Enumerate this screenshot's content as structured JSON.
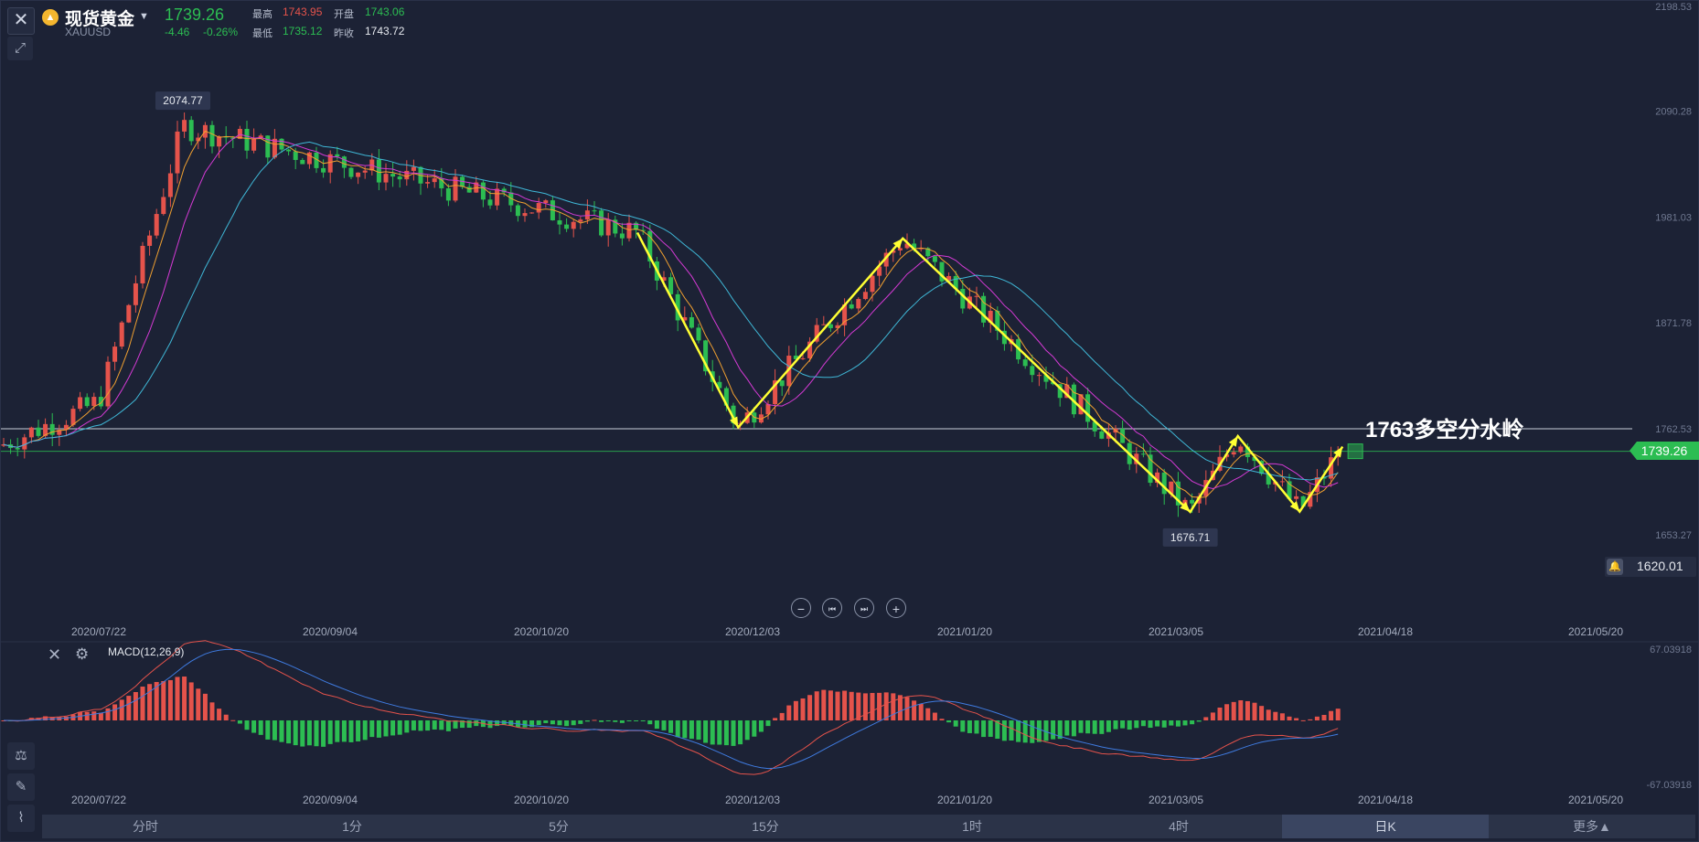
{
  "header": {
    "symbol_name": "现货黄金",
    "symbol_code": "XAUUSD",
    "last_price": "1739.26",
    "change_abs": "-4.46",
    "change_pct": "-0.26%",
    "high_label": "最高",
    "high_value": "1743.95",
    "open_label": "开盘",
    "open_value": "1743.06",
    "low_label": "最低",
    "low_value": "1735.12",
    "prev_close_label": "昨收",
    "prev_close_value": "1743.72"
  },
  "price_axis": {
    "ticks": [
      "2198.53",
      "2090.28",
      "1981.03",
      "1871.78",
      "1762.53",
      "1653.27"
    ],
    "current_price_tag": "1739.26",
    "alert_price": "1620.01"
  },
  "annotations": {
    "high_marker": "2074.77",
    "low_marker": "1676.71",
    "level_text": "1763多空分水岭"
  },
  "date_axis": [
    "2020/07/22",
    "2020/09/04",
    "2020/10/20",
    "2020/12/03",
    "2021/01/20",
    "2021/03/05",
    "2021/04/18",
    "2021/05/20"
  ],
  "macd": {
    "label": "MACD(12,26,9)",
    "axis_top": "67.03918",
    "axis_bottom": "-67.03918"
  },
  "timeframes": [
    "分时",
    "1分",
    "5分",
    "15分",
    "1时",
    "4时",
    "日K",
    "更多▲"
  ],
  "active_timeframe": "日K",
  "colors": {
    "up": "#e5534b",
    "down": "#2cbd52",
    "background": "#1c2235",
    "annotation": "#ffff33"
  },
  "icons": {
    "close": "close-icon",
    "expand": "expand-icon",
    "bell": "bell-icon",
    "gear": "gear-icon"
  },
  "chart_data": {
    "type": "candlestick",
    "y_axis_range": [
      1620.01,
      2198.53
    ],
    "key_levels": [
      1762.53,
      1739.26
    ],
    "swing_points": [
      {
        "date": "2020/08/07",
        "price": 2074.77
      },
      {
        "date": "2020/11/09",
        "price": 1965
      },
      {
        "date": "2020/11/30",
        "price": 1764
      },
      {
        "date": "2021/01/06",
        "price": 1959
      },
      {
        "date": "2021/03/08",
        "price": 1676.71
      },
      {
        "date": "2021/03/18",
        "price": 1755
      },
      {
        "date": "2021/03/31",
        "price": 1677
      },
      {
        "date": "2021/04/09",
        "price": 1744
      }
    ]
  }
}
